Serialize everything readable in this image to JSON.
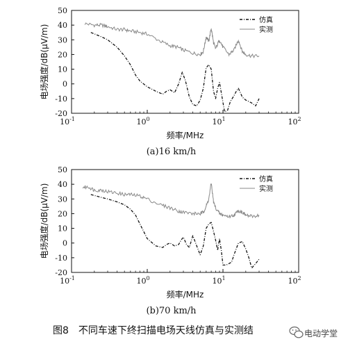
{
  "figure_caption": "图8　不同车速下终扫描电场天线仿真与实测结",
  "watermark": {
    "text": "电动学堂",
    "icon": "wechat-icon"
  },
  "chart_data": [
    {
      "type": "line",
      "caption": "(a)16 km/h",
      "xlabel": "频率/MHz",
      "ylabel": "电场强度/dB(μV/m)",
      "xscale": "log",
      "xlim": [
        0.1,
        100
      ],
      "ylim": [
        -20,
        50
      ],
      "xticks": [
        0.1,
        1,
        10,
        100
      ],
      "xtick_labels": [
        "10",
        "10",
        "10",
        "10"
      ],
      "xtick_exponents": [
        "-1",
        "0",
        "1",
        "2"
      ],
      "yticks": [
        -20,
        -10,
        0,
        10,
        20,
        30,
        40,
        50
      ],
      "grid": false,
      "legend_position": "top-right",
      "series": [
        {
          "name": "仿真",
          "style": "dash-dot",
          "color": "#111111",
          "x": [
            0.18,
            0.25,
            0.3,
            0.4,
            0.5,
            0.6,
            0.7,
            0.8,
            1.0,
            1.3,
            1.6,
            1.8,
            2.0,
            2.3,
            2.6,
            2.9,
            3.2,
            3.6,
            4.0,
            4.5,
            5.0,
            5.5,
            6.0,
            6.5,
            7.0,
            7.5,
            8.0,
            8.5,
            9.0,
            9.5,
            10.5,
            11.5,
            12.5,
            14,
            15,
            16,
            17,
            18,
            20,
            22,
            24,
            27,
            30
          ],
          "y": [
            35,
            32,
            30,
            25,
            19,
            13,
            6,
            2,
            -2,
            -5,
            -7,
            -5,
            -4,
            -6,
            0,
            8,
            2,
            -9,
            -14,
            -15,
            -11,
            -3,
            11,
            13,
            10,
            -5,
            -10,
            -3,
            1,
            -6,
            -19,
            -18,
            -12,
            -8,
            -5,
            -3,
            -6,
            -9,
            -11,
            -12,
            -13,
            -15,
            -10
          ]
        },
        {
          "name": "实测",
          "style": "solid-noisy",
          "color": "#888888",
          "x": [
            0.15,
            0.2,
            0.25,
            0.3,
            0.4,
            0.5,
            0.6,
            0.8,
            1.0,
            1.5,
            2.0,
            2.5,
            3.0,
            4.0,
            5.0,
            5.5,
            6.0,
            6.5,
            7.0,
            7.5,
            8.0,
            9.0,
            10.0,
            12.0,
            14.0,
            16.0,
            18.0,
            20.0,
            24.0,
            30.0
          ],
          "y": [
            41,
            40,
            40,
            39,
            37,
            37,
            36,
            35,
            34,
            29,
            26,
            25,
            23,
            21,
            20,
            22,
            32,
            29,
            38,
            28,
            24,
            30,
            25,
            20,
            23,
            30,
            22,
            20,
            19,
            19
          ]
        }
      ]
    },
    {
      "type": "line",
      "caption": "(b)70 km/h",
      "xlabel": "频率/MHz",
      "ylabel": "电场强度/dB(μV/m)",
      "xscale": "log",
      "xlim": [
        0.1,
        100
      ],
      "ylim": [
        -20,
        50
      ],
      "xticks": [
        0.1,
        1,
        10,
        100
      ],
      "xtick_labels": [
        "10",
        "10",
        "10",
        "10"
      ],
      "xtick_exponents": [
        "-1",
        "0",
        "1",
        "2"
      ],
      "yticks": [
        -20,
        -10,
        0,
        10,
        20,
        30,
        40,
        50
      ],
      "grid": false,
      "legend_position": "top-right",
      "series": [
        {
          "name": "仿真",
          "style": "dash-dot",
          "color": "#111111",
          "x": [
            0.18,
            0.25,
            0.3,
            0.4,
            0.5,
            0.6,
            0.7,
            0.8,
            1.0,
            1.3,
            1.6,
            1.8,
            2.0,
            2.3,
            2.6,
            2.8,
            3.0,
            3.3,
            3.6,
            4.0,
            4.5,
            5.0,
            5.5,
            6.0,
            6.5,
            7.0,
            7.5,
            8.0,
            8.5,
            9.0,
            9.5,
            10.0,
            11.0,
            12.0,
            13.0,
            14.0,
            16.0,
            18.0,
            20.0,
            22.0,
            24.0,
            27.0,
            30.0
          ],
          "y": [
            33,
            31,
            30,
            28,
            26,
            23,
            19,
            13,
            3,
            -2,
            -3,
            -1,
            0,
            -2,
            -1,
            2,
            4,
            -1,
            -3,
            5,
            -2,
            -8,
            -2,
            10,
            13,
            14,
            8,
            2,
            -5,
            3,
            -5,
            -15,
            -15,
            -14,
            -13,
            -8,
            0,
            1,
            -4,
            -10,
            -17,
            -14,
            -11
          ]
        },
        {
          "name": "实测",
          "style": "solid-noisy",
          "color": "#888888",
          "x": [
            0.14,
            0.17,
            0.2,
            0.25,
            0.3,
            0.4,
            0.5,
            0.6,
            0.8,
            1.0,
            1.5,
            2.0,
            2.5,
            3.0,
            4.0,
            5.0,
            5.5,
            6.0,
            6.5,
            7.0,
            7.5,
            8.0,
            9.0,
            10.0,
            12.0,
            14.0,
            16.0,
            18.0,
            20.0,
            24.0,
            30.0
          ],
          "y": [
            38,
            38,
            36,
            36,
            35,
            34,
            33,
            33,
            32,
            30,
            26,
            24,
            22,
            21,
            20,
            20,
            21,
            25,
            30,
            41,
            28,
            24,
            20,
            19,
            18,
            19,
            22,
            21,
            19,
            18,
            19
          ]
        }
      ]
    }
  ]
}
